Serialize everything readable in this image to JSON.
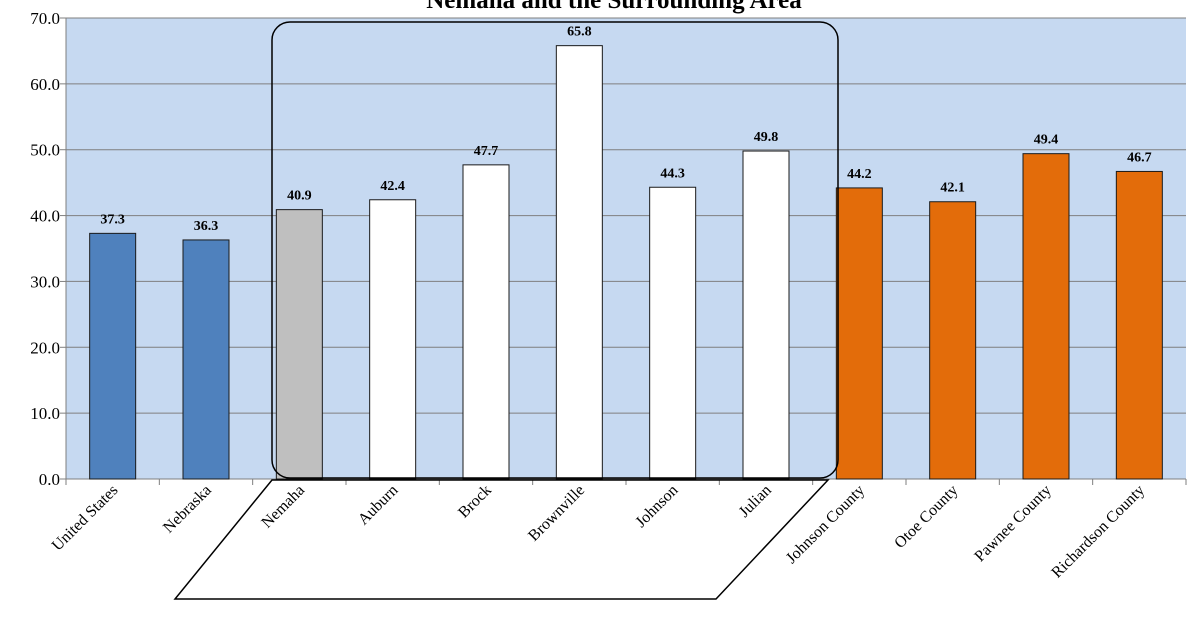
{
  "chart_data": {
    "type": "bar",
    "title": "Nemaha and the Surrounding Area",
    "xlabel": "",
    "ylabel": "",
    "ylim": [
      0,
      70
    ],
    "yticks": [
      "0.0",
      "10.0",
      "20.0",
      "30.0",
      "40.0",
      "50.0",
      "60.0",
      "70.0"
    ],
    "grid": true,
    "categories": [
      "United States",
      "Nebraska",
      "Nemaha",
      "Auburn",
      "Brock",
      "Brownville",
      "Johnson",
      "Julian",
      "Johnson County",
      "Otoe County",
      "Pawnee County",
      "Richardson County"
    ],
    "values": [
      37.3,
      36.3,
      40.9,
      42.4,
      47.7,
      65.8,
      44.3,
      49.8,
      44.2,
      42.1,
      49.4,
      46.7
    ],
    "value_labels": [
      "37.3",
      "36.3",
      "40.9",
      "42.4",
      "47.7",
      "65.8",
      "44.3",
      "49.8",
      "44.2",
      "42.1",
      "49.4",
      "46.7"
    ],
    "bar_colors": [
      "#4f81bd",
      "#4f81bd",
      "#bfbfbf",
      "#ffffff",
      "#ffffff",
      "#ffffff",
      "#ffffff",
      "#ffffff",
      "#e36c0a",
      "#e36c0a",
      "#e36c0a",
      "#e36c0a"
    ],
    "plot_background": "#c6d9f1",
    "gridline_color": "#7f7f7f"
  }
}
